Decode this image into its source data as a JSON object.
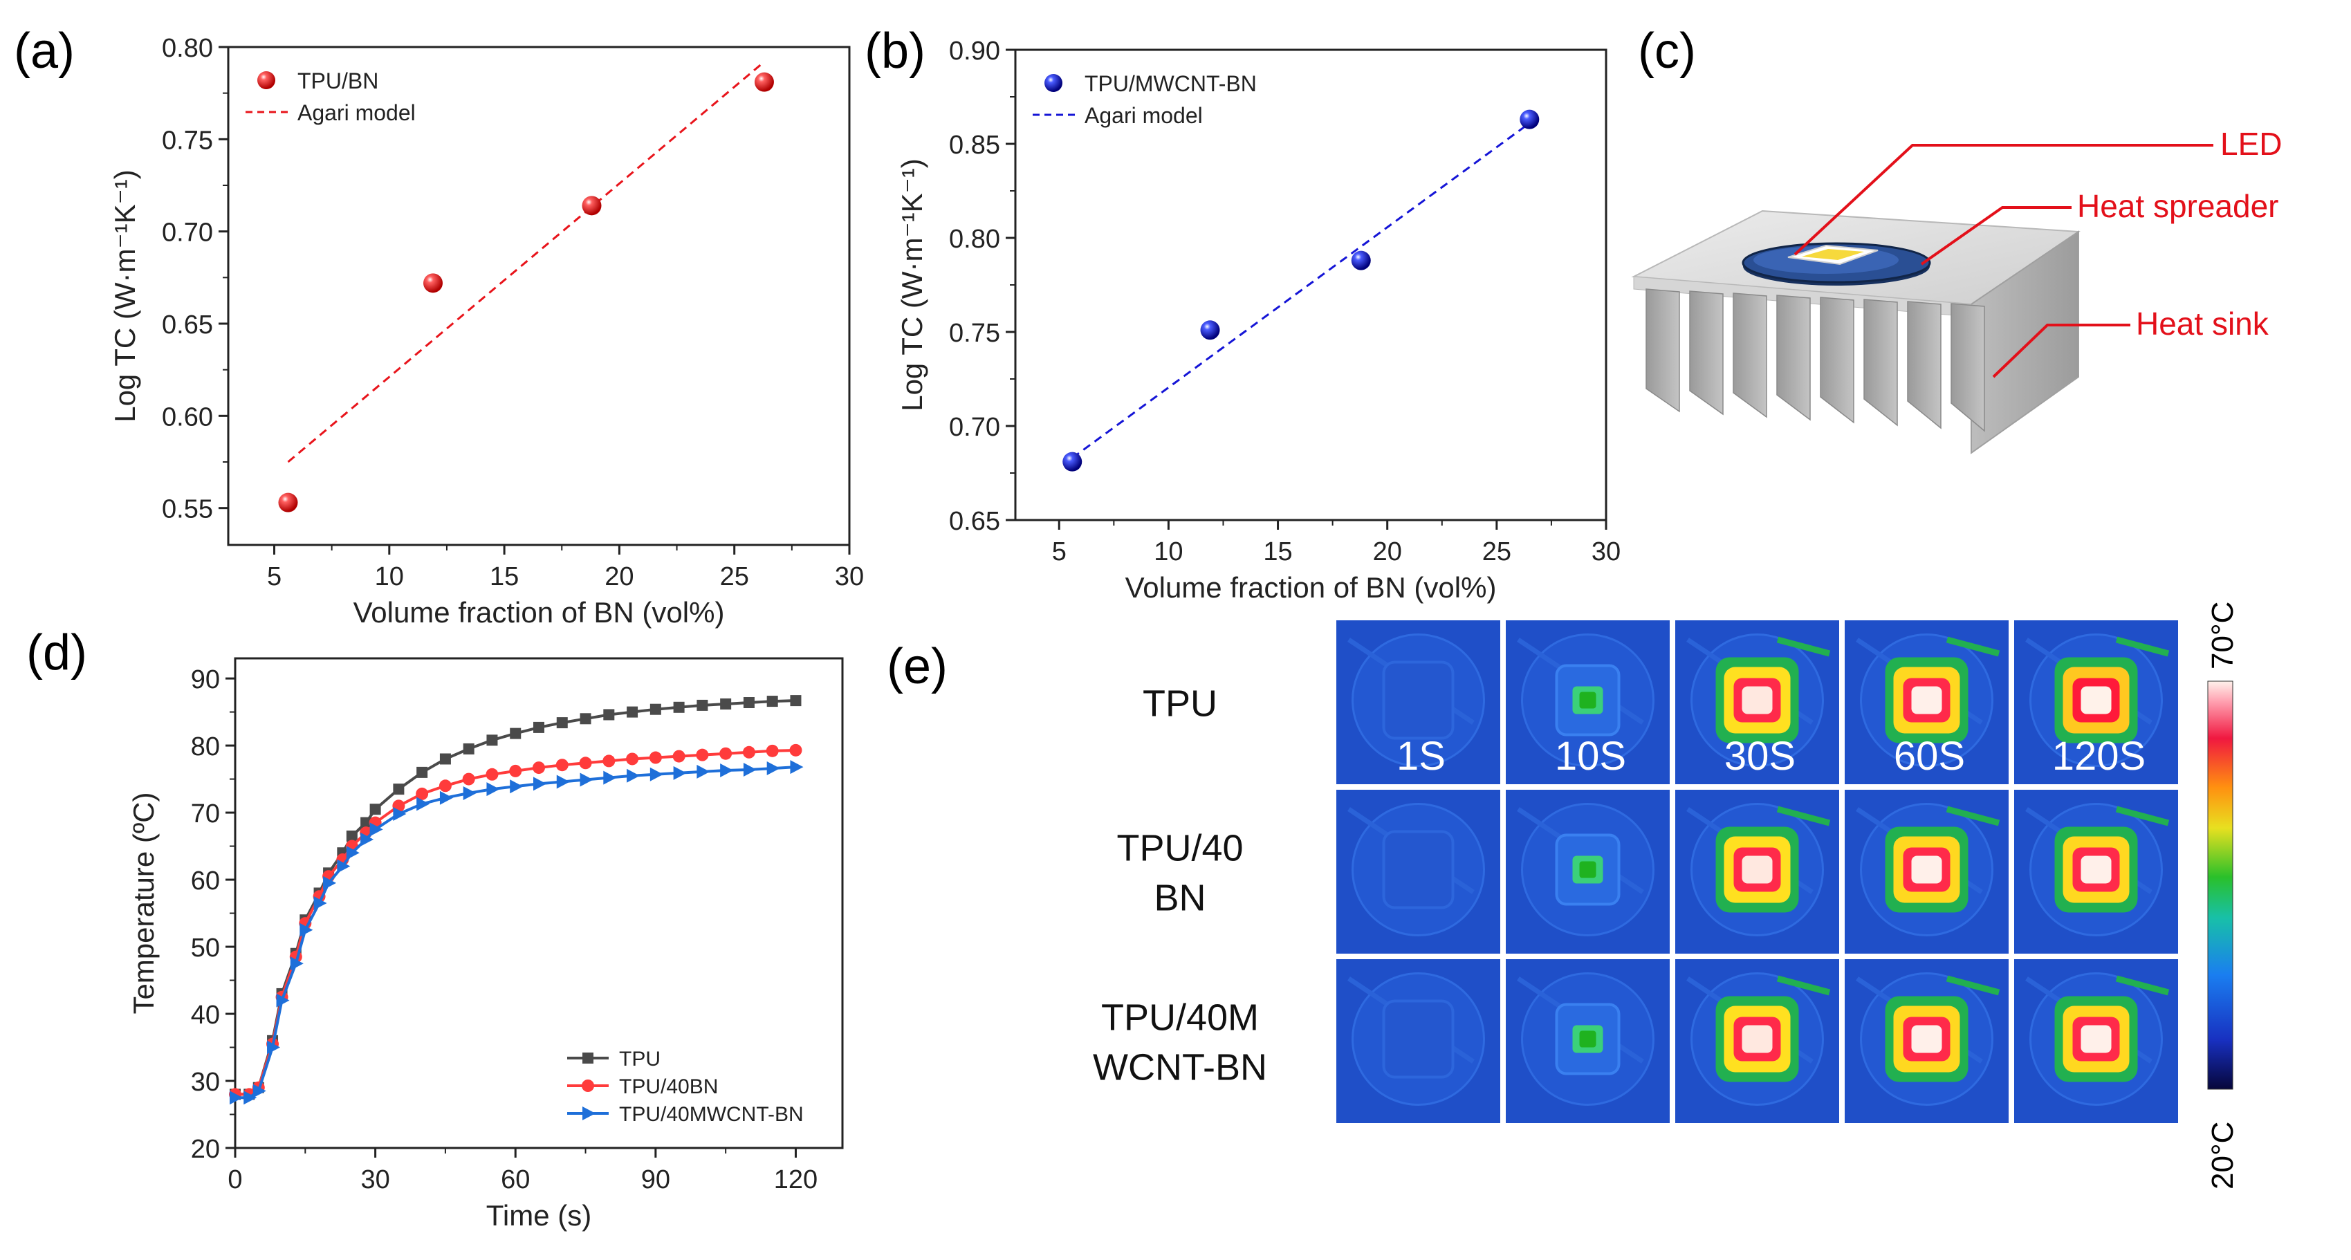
{
  "panel_labels": [
    "(a)",
    "(b)",
    "(c)",
    "(d)",
    "(e)"
  ],
  "chart_data": [
    {
      "id": "a",
      "type": "scatter",
      "xlabel": "Volume fraction of BN (vol%)",
      "ylabel": "Log TC (W·m⁻¹K⁻¹)",
      "xlim": [
        3,
        30
      ],
      "ylim": [
        0.53,
        0.8
      ],
      "xticks": [
        5,
        10,
        15,
        20,
        25,
        30
      ],
      "yticks": [
        0.55,
        0.6,
        0.65,
        0.7,
        0.75,
        0.8
      ],
      "grid": false,
      "legend": "top-left",
      "series": [
        {
          "name": "TPU/BN",
          "kind": "points",
          "color": "#e8141b",
          "x": [
            5.6,
            11.9,
            18.8,
            26.3
          ],
          "y": [
            0.553,
            0.672,
            0.714,
            0.781
          ]
        },
        {
          "name": "Agari model",
          "kind": "dashed-line",
          "color": "#e8141b",
          "x": [
            5.6,
            26.3
          ],
          "y": [
            0.575,
            0.792
          ]
        }
      ]
    },
    {
      "id": "b",
      "type": "scatter",
      "xlabel": "Volume fraction of BN (vol%)",
      "ylabel": "Log TC (W·m⁻¹K⁻¹)",
      "xlim": [
        3,
        30
      ],
      "ylim": [
        0.65,
        0.9
      ],
      "xticks": [
        5,
        10,
        15,
        20,
        25,
        30
      ],
      "yticks": [
        0.65,
        0.7,
        0.75,
        0.8,
        0.85,
        0.9
      ],
      "grid": false,
      "legend": "top-left",
      "series": [
        {
          "name": "TPU/MWCNT-BN",
          "kind": "points",
          "color": "#1515d6",
          "x": [
            5.6,
            11.9,
            18.8,
            26.5
          ],
          "y": [
            0.681,
            0.751,
            0.788,
            0.863
          ]
        },
        {
          "name": "Agari model",
          "kind": "dashed-line",
          "color": "#1515d6",
          "x": [
            5.6,
            26.5
          ],
          "y": [
            0.683,
            0.861
          ]
        }
      ]
    },
    {
      "id": "d",
      "type": "line",
      "xlabel": "Time (s)",
      "ylabel": "Temperature (ºC)",
      "xlim": [
        0,
        130
      ],
      "ylim": [
        20,
        93
      ],
      "xticks": [
        0,
        30,
        60,
        90,
        120
      ],
      "yticks": [
        20,
        30,
        40,
        50,
        60,
        70,
        80,
        90
      ],
      "grid": false,
      "legend": "bottom-right",
      "series": [
        {
          "name": "TPU",
          "marker": "square",
          "color": "#4a4a4a",
          "x": [
            0,
            3,
            5,
            8,
            10,
            13,
            15,
            18,
            20,
            23,
            25,
            28,
            30,
            35,
            40,
            45,
            50,
            55,
            60,
            65,
            70,
            75,
            80,
            85,
            90,
            95,
            100,
            105,
            110,
            115,
            120
          ],
          "y": [
            28,
            28,
            29,
            36,
            43,
            49,
            54,
            58,
            61,
            64,
            66.5,
            68.5,
            70.5,
            73.5,
            76,
            78,
            79.5,
            80.8,
            81.8,
            82.7,
            83.4,
            84,
            84.6,
            85,
            85.4,
            85.7,
            86,
            86.2,
            86.4,
            86.6,
            86.7
          ]
        },
        {
          "name": "TPU/40BN",
          "marker": "circle",
          "color": "#ff3b3b",
          "x": [
            0,
            3,
            5,
            8,
            10,
            13,
            15,
            18,
            20,
            23,
            25,
            28,
            30,
            35,
            40,
            45,
            50,
            55,
            60,
            65,
            70,
            75,
            80,
            85,
            90,
            95,
            100,
            105,
            110,
            115,
            120
          ],
          "y": [
            28,
            28,
            29,
            35.5,
            42.5,
            48.5,
            53.5,
            57.5,
            60.5,
            63,
            65,
            67,
            68.5,
            71,
            72.8,
            74,
            75,
            75.7,
            76.2,
            76.7,
            77.1,
            77.4,
            77.7,
            78,
            78.2,
            78.4,
            78.6,
            78.8,
            79,
            79.2,
            79.3
          ]
        },
        {
          "name": "TPU/40MWCNT-BN",
          "marker": "triangle-right",
          "color": "#1e6fd9",
          "x": [
            0,
            3,
            5,
            8,
            10,
            13,
            15,
            18,
            20,
            23,
            25,
            28,
            30,
            35,
            40,
            45,
            50,
            55,
            60,
            65,
            70,
            75,
            80,
            85,
            90,
            95,
            100,
            105,
            110,
            115,
            120
          ],
          "y": [
            27.5,
            27.5,
            28.5,
            35,
            42,
            47.5,
            52.5,
            56.5,
            59.5,
            62,
            64,
            66,
            67.5,
            69.8,
            71.3,
            72.2,
            72.9,
            73.5,
            73.9,
            74.3,
            74.6,
            74.9,
            75.2,
            75.5,
            75.7,
            75.9,
            76.1,
            76.3,
            76.4,
            76.6,
            76.8
          ]
        }
      ]
    }
  ],
  "schematic": {
    "labels": {
      "led": "LED",
      "spreader": "Heat spreader",
      "sink": "Heat sink"
    },
    "colors": {
      "leader": "#e3101a",
      "spreader": "#1b3d7a",
      "chip": "#f6d93c"
    }
  },
  "thermal": {
    "rows": [
      "TPU",
      "TPU/40\nBN",
      "TPU/40M\nWCNT-BN"
    ],
    "times": [
      "1S",
      "10S",
      "30S",
      "60S",
      "120S"
    ],
    "levels": [
      [
        0,
        1,
        3,
        4,
        5
      ],
      [
        0,
        1,
        3,
        4,
        4
      ],
      [
        0,
        1,
        3,
        4,
        4
      ]
    ],
    "colorbar": {
      "max": "70°C",
      "min": "20°C"
    }
  }
}
